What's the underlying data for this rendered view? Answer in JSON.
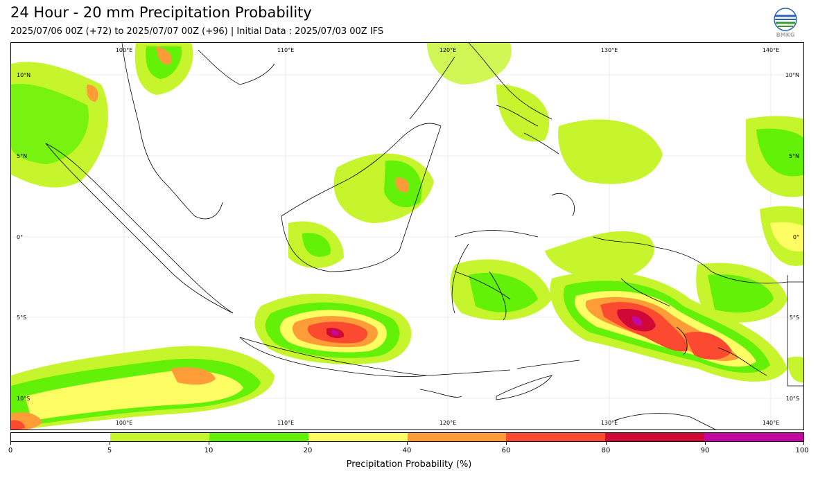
{
  "header": {
    "title": "24 Hour - 20 mm Precipitation Probability",
    "subtitle": "2025/07/06 00Z (+72) to 2025/07/07 00Z (+96) | Initial Data : 2025/07/03 00Z IFS",
    "logo_text": "BMKG"
  },
  "map": {
    "region": "Indonesia",
    "lon_labels_top": [
      "100°E",
      "110°E",
      "120°E",
      "130°E",
      "140°E"
    ],
    "lon_labels_bottom": [
      "100°E",
      "110°E",
      "120°E",
      "130°E",
      "140°E"
    ],
    "lat_labels_left": [
      "10°N",
      "5°N",
      "0°",
      "5°S",
      "10°S"
    ],
    "lat_labels_right": [
      "10°N",
      "5°N",
      "0°",
      "5°S",
      "10°S"
    ],
    "lon_values": [
      100,
      110,
      120,
      130,
      140
    ],
    "lat_values": [
      10,
      5,
      0,
      -5,
      -10
    ]
  },
  "colorbar": {
    "label": "Precipitation Probability (%)",
    "ticks": [
      "0",
      "5",
      "10",
      "20",
      "40",
      "60",
      "80",
      "90",
      "100"
    ],
    "colors": [
      "#ffffff",
      "#c6f52d",
      "#63f10a",
      "#fefe64",
      "#fe9d38",
      "#fb4a30",
      "#cf0837",
      "#c10a9d"
    ]
  }
}
